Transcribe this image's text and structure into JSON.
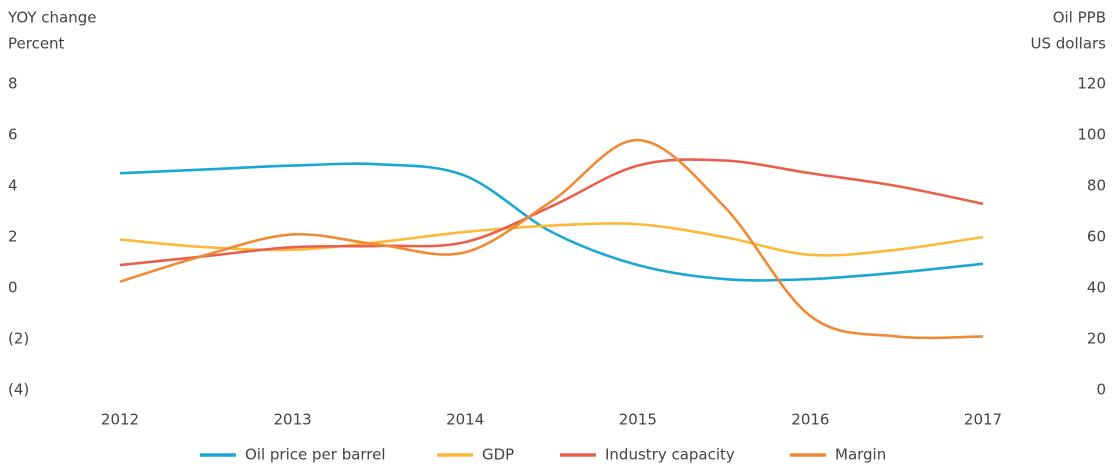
{
  "chart_data": {
    "type": "line",
    "y_axis_title": [
      "YOY change",
      "Percent"
    ],
    "y2_axis_title": [
      "Oil PPB",
      "US dollars"
    ],
    "x": [
      2012,
      2012.5,
      2013,
      2013.5,
      2014,
      2014.5,
      2015,
      2015.5,
      2016,
      2016.5,
      2017
    ],
    "xlim": [
      2012,
      2017
    ],
    "xticks": [
      2012,
      2013,
      2014,
      2015,
      2016,
      2017
    ],
    "ylim": [
      -4,
      8
    ],
    "yticks": [
      {
        "value": -4,
        "label": "(4)"
      },
      {
        "value": -2,
        "label": "(2)"
      },
      0,
      2,
      4,
      6,
      8
    ],
    "y2lim": [
      0,
      120
    ],
    "y2ticks": [
      0,
      20,
      40,
      60,
      80,
      100,
      120
    ],
    "grid": false,
    "legend": "bottom",
    "series": [
      {
        "name": "Oil price per barrel",
        "color": "#1aa7d4",
        "axis": "y2",
        "values": [
          85,
          86.5,
          88,
          88.5,
          84,
          62,
          49,
          43.5,
          43.5,
          46,
          49.5
        ]
      },
      {
        "name": "GDP",
        "color": "#fbb937",
        "values": [
          1.9,
          1.6,
          1.5,
          1.8,
          2.2,
          2.45,
          2.5,
          2.0,
          1.3,
          1.5,
          2.0
        ]
      },
      {
        "name": "Industry capacity",
        "color": "#e8604c",
        "values": [
          0.9,
          1.25,
          1.6,
          1.65,
          1.8,
          3.2,
          4.8,
          5.0,
          4.5,
          4.0,
          3.3
        ]
      },
      {
        "name": "Margin",
        "color": "#ef8a35",
        "values": [
          0.25,
          1.3,
          2.1,
          1.7,
          1.4,
          3.4,
          5.8,
          3.2,
          -1.1,
          -1.9,
          -1.9
        ]
      }
    ]
  }
}
